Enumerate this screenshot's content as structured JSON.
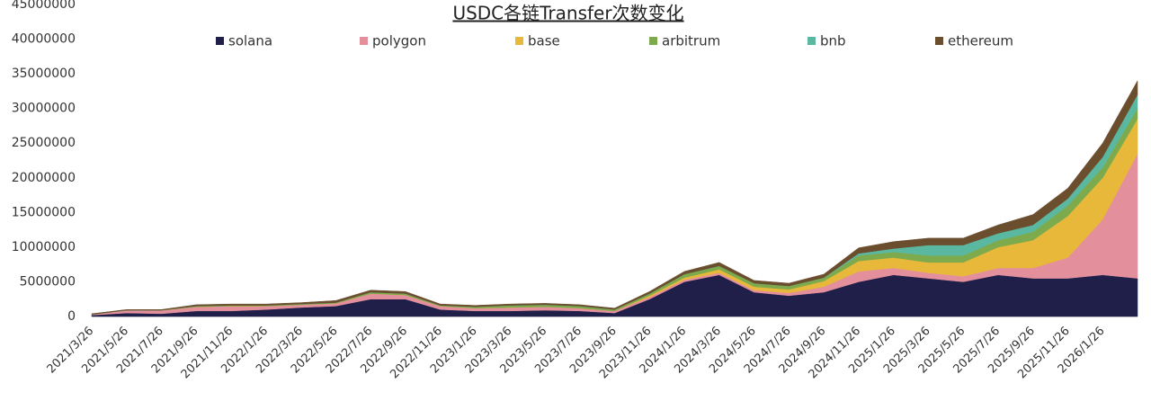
{
  "chart_data": {
    "type": "area",
    "stacked": true,
    "title": "USDC各链Transfer次数变化",
    "categories": [
      "2021/3/26",
      "2021/5/26",
      "2021/7/26",
      "2021/9/26",
      "2021/11/26",
      "2022/1/26",
      "2022/3/26",
      "2022/5/26",
      "2022/7/26",
      "2022/9/26",
      "2022/11/26",
      "2023/1/26",
      "2023/3/26",
      "2023/5/26",
      "2023/7/26",
      "2023/9/26",
      "2023/11/26",
      "2024/1/26",
      "2024/3/26",
      "2024/5/26",
      "2024/7/26",
      "2024/9/26",
      "2024/11/26",
      "2025/1/26",
      "2025/3/26",
      "2025/5/26",
      "2025/7/26",
      "2025/9/26",
      "2025/11/26",
      "2026/1/26",
      null
    ],
    "series": [
      {
        "name": "solana",
        "color": "#1f1f4a",
        "values": [
          200000,
          500000,
          400000,
          800000,
          800000,
          1000000,
          1300000,
          1500000,
          2500000,
          2500000,
          1000000,
          800000,
          800000,
          900000,
          800000,
          500000,
          2500000,
          5000000,
          6000000,
          3500000,
          3000000,
          3500000,
          5000000,
          6000000,
          5500000,
          5000000,
          6000000,
          5500000,
          5500000,
          6000000,
          5500000
        ]
      },
      {
        "name": "polygon",
        "color": "#e3909c",
        "values": [
          100000,
          400000,
          500000,
          600000,
          700000,
          500000,
          400000,
          400000,
          800000,
          600000,
          500000,
          400000,
          500000,
          500000,
          400000,
          300000,
          300000,
          300000,
          300000,
          300000,
          400000,
          800000,
          1500000,
          1000000,
          800000,
          800000,
          1000000,
          1500000,
          3000000,
          8000000,
          18000000
        ]
      },
      {
        "name": "base",
        "color": "#e8b83a",
        "values": [
          0,
          0,
          0,
          0,
          0,
          0,
          0,
          0,
          0,
          0,
          0,
          0,
          0,
          0,
          0,
          0,
          200000,
          300000,
          500000,
          500000,
          500000,
          800000,
          1500000,
          1500000,
          1500000,
          2000000,
          3000000,
          4000000,
          6000000,
          6000000,
          5000000
        ]
      },
      {
        "name": "arbitrum",
        "color": "#7daa4c",
        "values": [
          0,
          0,
          0,
          100000,
          100000,
          100000,
          100000,
          100000,
          200000,
          200000,
          100000,
          200000,
          300000,
          300000,
          300000,
          200000,
          300000,
          500000,
          500000,
          500000,
          500000,
          500000,
          800000,
          800000,
          1000000,
          1000000,
          1000000,
          1200000,
          1500000,
          1500000,
          1500000
        ]
      },
      {
        "name": "bnb",
        "color": "#5bb8a0",
        "values": [
          0,
          0,
          0,
          0,
          0,
          0,
          0,
          0,
          0,
          0,
          0,
          0,
          0,
          0,
          0,
          0,
          0,
          0,
          0,
          0,
          0,
          0,
          300000,
          500000,
          1500000,
          1500000,
          1000000,
          1000000,
          1000000,
          1500000,
          2000000
        ]
      },
      {
        "name": "ethereum",
        "color": "#6b4e2e",
        "values": [
          100000,
          100000,
          100000,
          200000,
          200000,
          200000,
          200000,
          300000,
          300000,
          300000,
          200000,
          200000,
          200000,
          200000,
          200000,
          200000,
          300000,
          400000,
          500000,
          400000,
          400000,
          500000,
          800000,
          1000000,
          1000000,
          1000000,
          1200000,
          1500000,
          1500000,
          2000000,
          2000000
        ]
      }
    ],
    "ylim": [
      0,
      45000000
    ],
    "yticks": [
      0,
      5000000,
      10000000,
      15000000,
      20000000,
      25000000,
      30000000,
      35000000,
      40000000,
      45000000
    ]
  }
}
